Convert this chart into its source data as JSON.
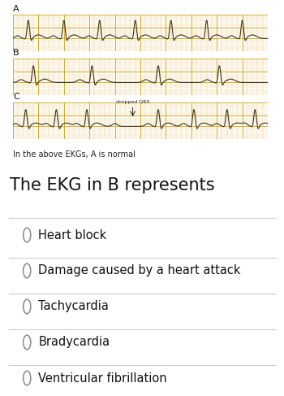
{
  "bg_color": "#ffffff",
  "ekg_bg": "#f7edbe",
  "ekg_line_color": "#4a3a1a",
  "grid_color_minor": "#e8c97a",
  "grid_color_major": "#d4a820",
  "label_A": "A",
  "label_B": "B",
  "label_C": "C",
  "caption": "In the above EKGs, A is normal",
  "question": "The EKG in B represents",
  "options": [
    "Heart block",
    "Damage caused by a heart attack",
    "Tachycardia",
    "Bradycardia",
    "Ventricular fibrillation"
  ],
  "option_circle_color": "#888888",
  "divider_color": "#cccccc",
  "caption_fontsize": 7.0,
  "question_fontsize": 15,
  "option_fontsize": 10.5,
  "label_fontsize": 8
}
